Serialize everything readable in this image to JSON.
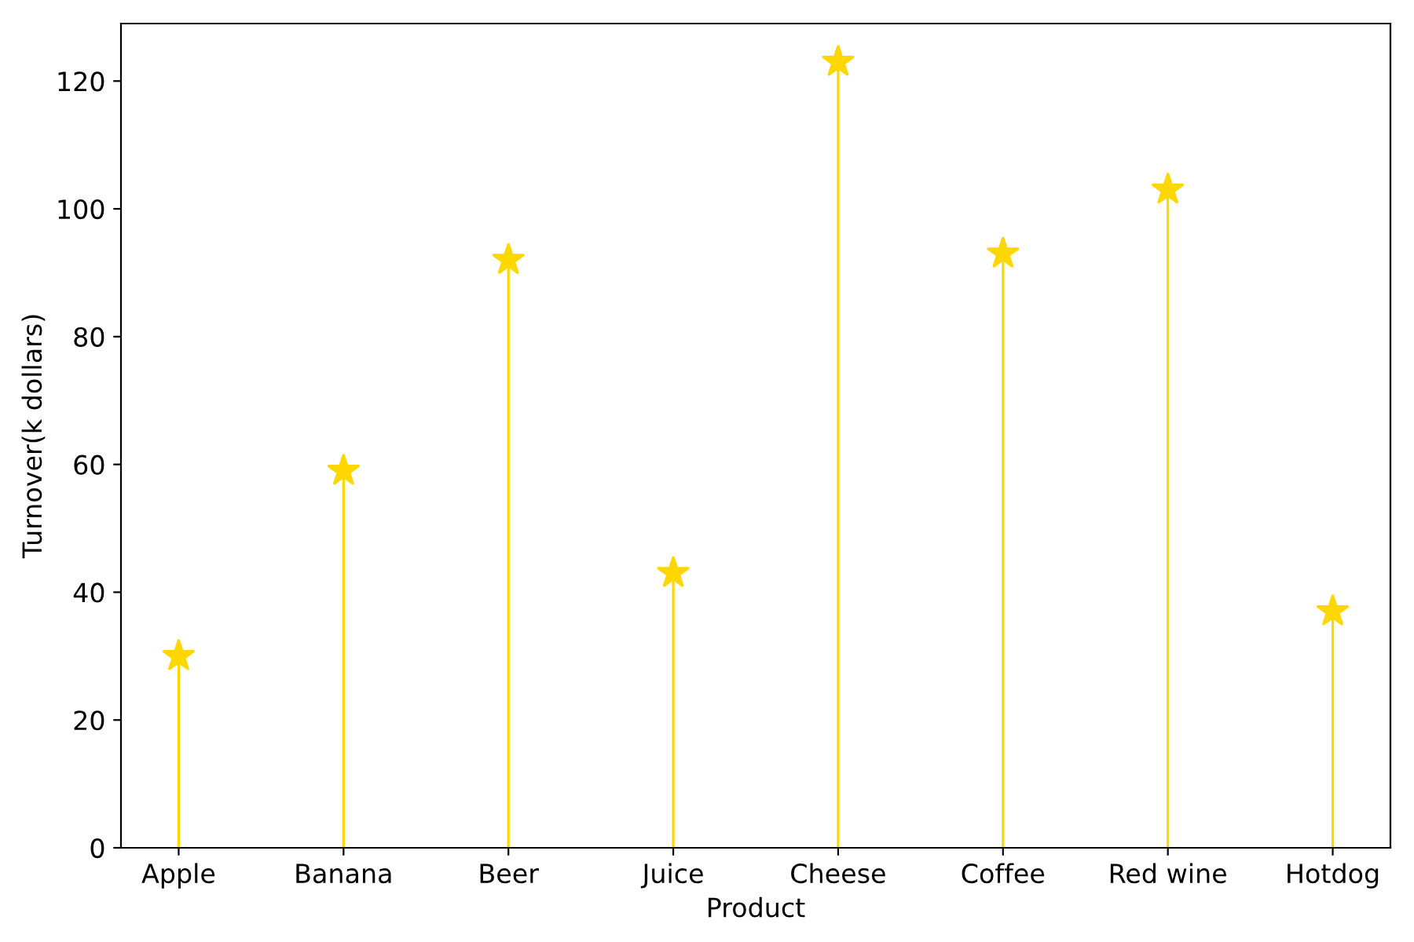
{
  "chart_data": {
    "type": "lollipop",
    "xlabel": "Product",
    "ylabel": "Turnover(k dollars)",
    "categories": [
      "Apple",
      "Banana",
      "Beer",
      "Juice",
      "Cheese",
      "Coffee",
      "Red wine",
      "Hotdog"
    ],
    "values": [
      30,
      59,
      92,
      43,
      123,
      93,
      103,
      37
    ],
    "color": "#ffd700",
    "ylim": [
      0,
      129
    ],
    "yticks": [
      0,
      20,
      40,
      60,
      80,
      100,
      120
    ],
    "grid": false,
    "marker": "star"
  }
}
